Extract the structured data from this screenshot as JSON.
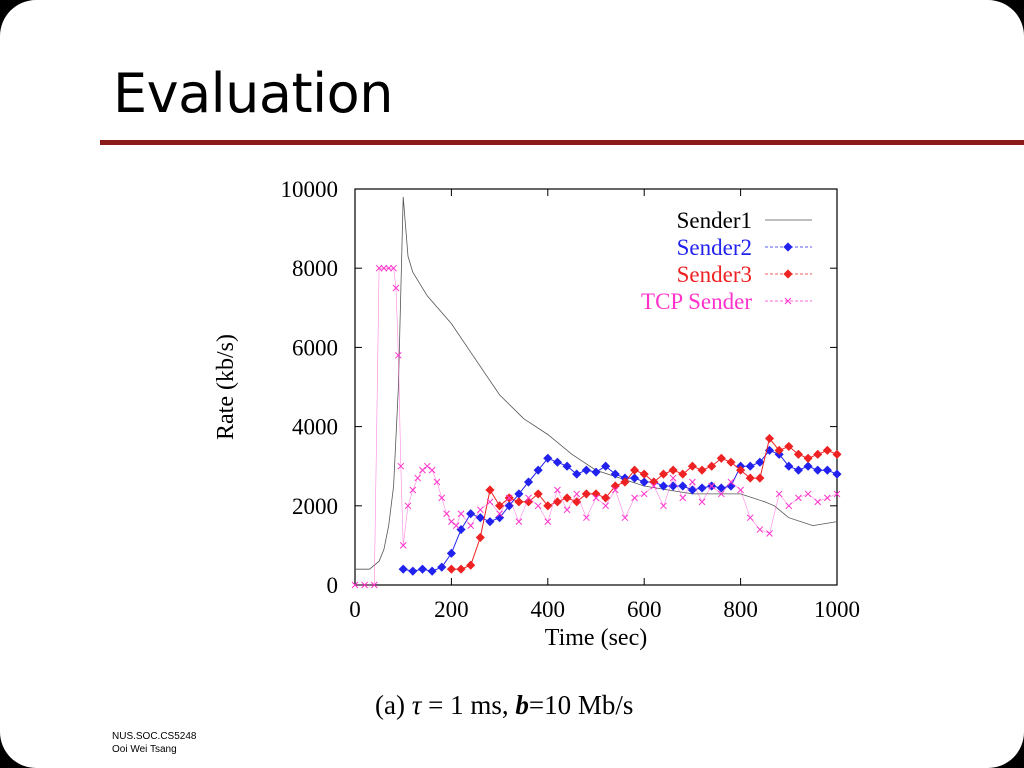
{
  "slide": {
    "title": "Evaluation"
  },
  "caption": {
    "prefix": "(a) ",
    "tau": "τ",
    "mid": " = 1 ms, ",
    "b": "b",
    "suffix": "=10 Mb/s"
  },
  "footer": {
    "line1": "NUS.SOC.CS5248",
    "line2": "Ooi Wei Tsang"
  },
  "colors": {
    "rule": "#8b1a1a",
    "sender1": "#555555",
    "sender2": "#2222ee",
    "sender3": "#ee2222",
    "tcp": "#ff33cc"
  },
  "chart_data": {
    "type": "line",
    "xlabel": "Time (sec)",
    "ylabel": "Rate (kb/s)",
    "xlim": [
      0,
      1000
    ],
    "ylim": [
      0,
      10000
    ],
    "xticks": [
      0,
      200,
      400,
      600,
      800,
      1000
    ],
    "yticks": [
      0,
      2000,
      4000,
      6000,
      8000,
      10000
    ],
    "legend_position": "top-right",
    "series": [
      {
        "name": "Sender1",
        "style": "thin-line",
        "x": [
          0,
          30,
          50,
          60,
          70,
          80,
          90,
          100,
          110,
          120,
          150,
          200,
          250,
          300,
          350,
          400,
          450,
          500,
          550,
          600,
          650,
          700,
          750,
          800,
          850,
          870,
          900,
          950,
          1000
        ],
        "y": [
          400,
          400,
          600,
          900,
          1500,
          2500,
          5000,
          9800,
          8300,
          7900,
          7300,
          6600,
          5700,
          4800,
          4200,
          3800,
          3300,
          2900,
          2700,
          2500,
          2400,
          2300,
          2300,
          2300,
          2100,
          2000,
          1700,
          1500,
          1600
        ]
      },
      {
        "name": "Sender2",
        "style": "diamonds",
        "x": [
          100,
          120,
          140,
          160,
          180,
          200,
          220,
          240,
          260,
          280,
          300,
          320,
          340,
          360,
          380,
          400,
          420,
          440,
          460,
          480,
          500,
          520,
          540,
          560,
          580,
          600,
          620,
          640,
          660,
          680,
          700,
          720,
          740,
          760,
          780,
          800,
          820,
          840,
          860,
          880,
          900,
          920,
          940,
          960,
          980,
          1000
        ],
        "y": [
          400,
          350,
          400,
          350,
          450,
          800,
          1400,
          1800,
          1700,
          1600,
          1700,
          2000,
          2300,
          2600,
          2900,
          3200,
          3100,
          3000,
          2800,
          2900,
          2850,
          3000,
          2800,
          2700,
          2700,
          2600,
          2600,
          2500,
          2500,
          2500,
          2400,
          2450,
          2500,
          2450,
          2500,
          3000,
          3000,
          3100,
          3400,
          3300,
          3000,
          2900,
          3000,
          2900,
          2900,
          2800
        ]
      },
      {
        "name": "Sender3",
        "style": "diamonds",
        "x": [
          200,
          220,
          240,
          260,
          280,
          300,
          320,
          340,
          360,
          380,
          400,
          420,
          440,
          460,
          480,
          500,
          520,
          540,
          560,
          580,
          600,
          620,
          640,
          660,
          680,
          700,
          720,
          740,
          760,
          780,
          800,
          820,
          840,
          860,
          880,
          900,
          920,
          940,
          960,
          980,
          1000
        ],
        "y": [
          400,
          400,
          500,
          1200,
          2400,
          2000,
          2200,
          2100,
          2100,
          2300,
          2000,
          2100,
          2200,
          2100,
          2300,
          2300,
          2200,
          2500,
          2600,
          2900,
          2800,
          2600,
          2800,
          2900,
          2800,
          3000,
          2900,
          3000,
          3200,
          3100,
          2900,
          2700,
          2700,
          3700,
          3400,
          3500,
          3300,
          3200,
          3300,
          3400,
          3300
        ]
      },
      {
        "name": "TCP Sender",
        "style": "crosses",
        "x": [
          0,
          20,
          40,
          50,
          60,
          70,
          80,
          85,
          90,
          95,
          100,
          110,
          120,
          130,
          140,
          150,
          160,
          170,
          180,
          190,
          200,
          210,
          220,
          240,
          260,
          280,
          300,
          320,
          340,
          360,
          380,
          400,
          420,
          440,
          460,
          480,
          500,
          520,
          540,
          560,
          580,
          600,
          620,
          640,
          660,
          680,
          700,
          720,
          740,
          760,
          780,
          800,
          820,
          840,
          860,
          880,
          900,
          920,
          940,
          960,
          980,
          1000
        ],
        "y": [
          0,
          0,
          0,
          8000,
          8000,
          8000,
          8000,
          7500,
          5800,
          3000,
          1000,
          2000,
          2400,
          2700,
          2900,
          3000,
          2900,
          2600,
          2200,
          1800,
          1600,
          1500,
          1800,
          1500,
          1900,
          2100,
          1800,
          2200,
          1600,
          2200,
          2000,
          1600,
          2400,
          1900,
          2300,
          1700,
          2200,
          2000,
          2400,
          1700,
          2200,
          2300,
          2500,
          2000,
          2700,
          2200,
          2600,
          2100,
          2500,
          2300,
          2600,
          2400,
          1700,
          1400,
          1300,
          2300,
          2000,
          2200,
          2300,
          2100,
          2200,
          2300
        ]
      }
    ]
  }
}
